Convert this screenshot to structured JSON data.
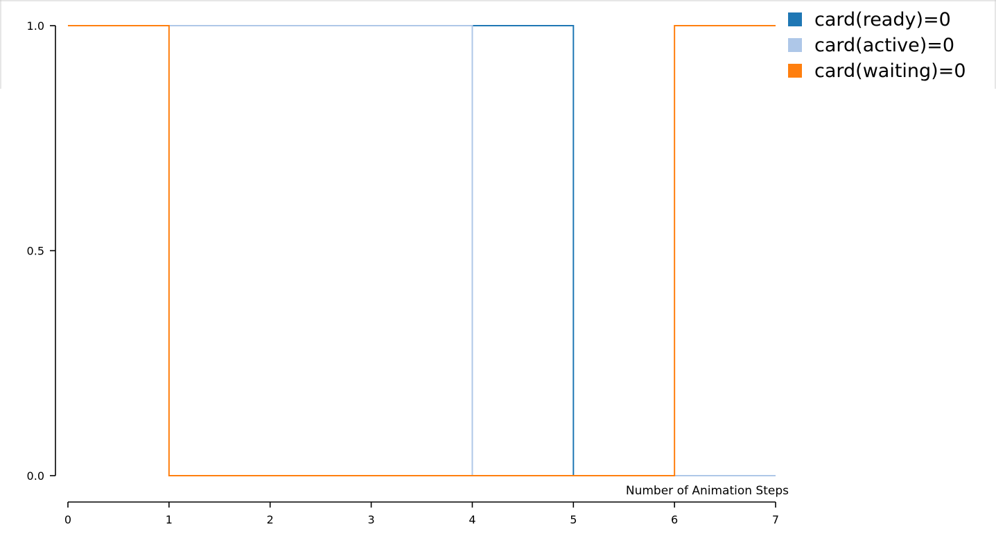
{
  "chart_data": {
    "type": "line",
    "step": true,
    "xlabel": "Number of Animation Steps",
    "ylabel": "",
    "xlim": [
      0,
      7
    ],
    "ylim": [
      0,
      1
    ],
    "x_ticks": [
      "0",
      "1",
      "2",
      "3",
      "4",
      "5",
      "6",
      "7"
    ],
    "y_ticks": [
      "0.0",
      "0.5",
      "1.0"
    ],
    "grid": false,
    "legend_position": "top-right",
    "x": [
      0,
      1,
      2,
      3,
      4,
      5,
      6,
      7
    ],
    "series": [
      {
        "name": "card(ready)=0",
        "color": "#1f77b4",
        "values": [
          1,
          1,
          1,
          1,
          1,
          0,
          0,
          0
        ]
      },
      {
        "name": "card(active)=0",
        "color": "#aec7e8",
        "values": [
          1,
          1,
          1,
          1,
          0,
          0,
          0,
          0
        ]
      },
      {
        "name": "card(waiting)=0",
        "color": "#ff7f0e",
        "values": [
          1,
          0,
          0,
          0,
          0,
          0,
          1,
          1
        ]
      }
    ]
  }
}
